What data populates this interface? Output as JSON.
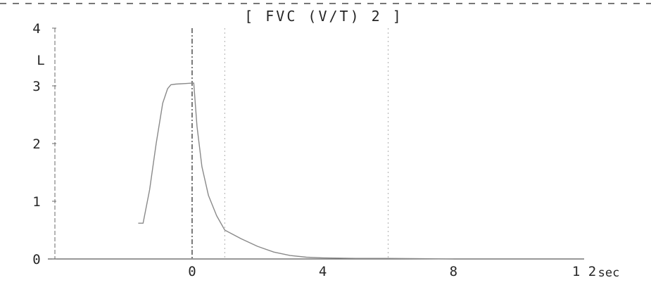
{
  "chart_data": {
    "type": "line",
    "title": "[ FVC (V/T) 2 ]",
    "xlabel": "sec",
    "ylabel": "L",
    "xlim": [
      -4.2,
      12
    ],
    "ylim": [
      0,
      4
    ],
    "x_ticks": [
      {
        "value": 0,
        "label": "0"
      },
      {
        "value": 4,
        "label": "4"
      },
      {
        "value": 8,
        "label": "8"
      },
      {
        "value": 12,
        "label": "1 2"
      }
    ],
    "y_ticks": [
      {
        "value": 0,
        "label": "0"
      },
      {
        "value": 1,
        "label": "1"
      },
      {
        "value": 2,
        "label": "2"
      },
      {
        "value": 3,
        "label": "3"
      },
      {
        "value": 4,
        "label": "4"
      }
    ],
    "vertical_lines": [
      0,
      1,
      6
    ],
    "grid": false,
    "series": [
      {
        "x": [
          -1.65,
          -1.5,
          -1.3,
          -1.1,
          -0.9,
          -0.75,
          -0.65,
          -0.5,
          -0.2,
          0.05,
          0.15,
          0.3,
          0.5,
          0.75,
          1.0,
          1.5,
          2.0,
          2.5,
          3.0,
          3.5,
          4.0,
          5.0,
          6.0,
          7.0,
          8.0
        ],
        "y": [
          0.62,
          0.62,
          1.2,
          2.0,
          2.7,
          2.95,
          3.02,
          3.03,
          3.04,
          3.05,
          2.3,
          1.6,
          1.1,
          0.75,
          0.5,
          0.35,
          0.22,
          0.12,
          0.06,
          0.03,
          0.02,
          0.01,
          0.01,
          0.005,
          0.0
        ]
      }
    ]
  }
}
